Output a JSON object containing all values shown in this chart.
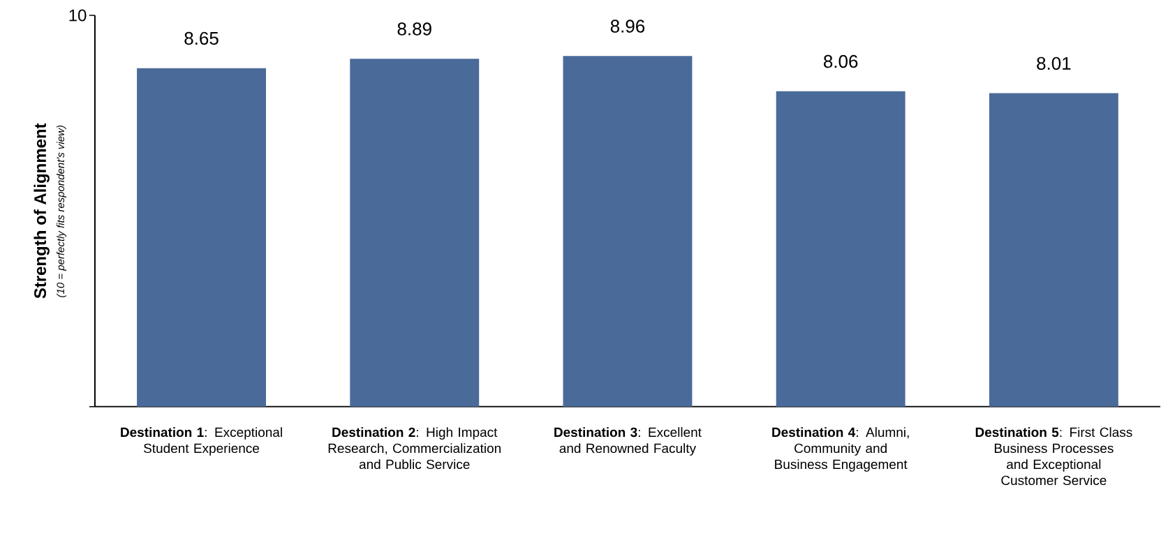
{
  "chart_data": {
    "type": "bar",
    "ylabel": "Strength of Alignment",
    "annotations": [
      "*(10 = perfectly fits respondent's view)*"
    ],
    "categories": [
      "**Destination 1**: Exceptional Student Experience",
      "**Destination 2**: High Impact Research, Commercialization and Public Service",
      "**Destination 3**: Excellent and Renowned Faculty",
      "**Destination 4**: Alumni, Community and Business Engagement",
      "**Destination 5**: First Class Business Processes and Exceptional Customer Service"
    ],
    "values": [
      8.65,
      8.89,
      8.96,
      8.06,
      8.01
    ],
    "color": "#4a6a9a",
    "ylim": [
      0,
      10
    ],
    "yticks": [
      {
        "value": 0,
        "label": null
      },
      10
    ],
    "data_labels": true,
    "grid": false
  }
}
